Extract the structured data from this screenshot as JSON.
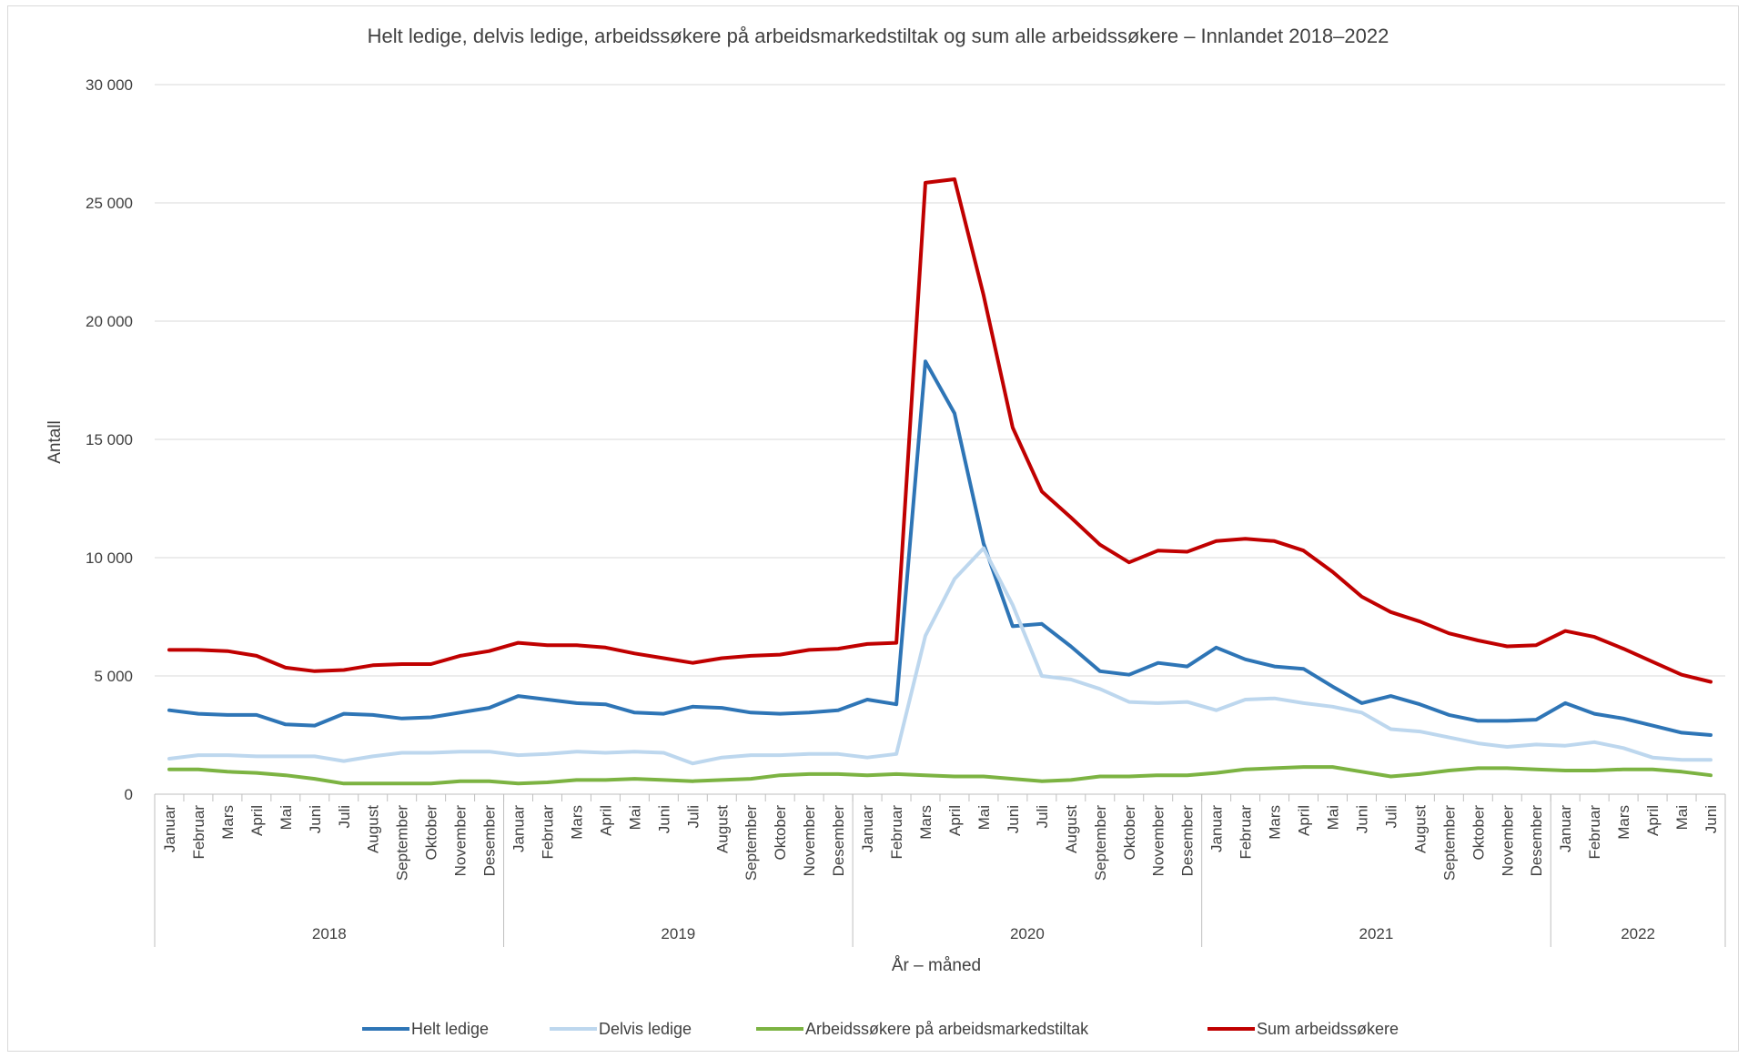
{
  "chart_data": {
    "type": "line",
    "title": "Helt ledige, delvis ledige, arbeidssøkere på arbeidsmarkedstiltak og sum alle arbeidssøkere – Innlandet 2018–2022",
    "xlabel": "År – måned",
    "ylabel": "Antall",
    "ylim": [
      0,
      30000
    ],
    "yticks": [
      0,
      5000,
      10000,
      15000,
      20000,
      25000,
      30000
    ],
    "ytick_labels": [
      "0",
      "5 000",
      "10 000",
      "15 000",
      "20 000",
      "25 000",
      "30 000"
    ],
    "grid": true,
    "legend_position": "bottom",
    "categories": [
      "Januar",
      "Februar",
      "Mars",
      "April",
      "Mai",
      "Juni",
      "Juli",
      "August",
      "September",
      "Oktober",
      "November",
      "Desember",
      "Januar",
      "Februar",
      "Mars",
      "April",
      "Mai",
      "Juni",
      "Juli",
      "August",
      "September",
      "Oktober",
      "November",
      "Desember",
      "Januar",
      "Februar",
      "Mars",
      "April",
      "Mai",
      "Juni",
      "Juli",
      "August",
      "September",
      "Oktober",
      "November",
      "Desember",
      "Januar",
      "Februar",
      "Mars",
      "April",
      "Mai",
      "Juni",
      "Juli",
      "August",
      "September",
      "Oktober",
      "November",
      "Desember",
      "Januar",
      "Februar",
      "Mars",
      "April",
      "Mai",
      "Juni"
    ],
    "groups": [
      {
        "label": "2018",
        "count": 12
      },
      {
        "label": "2019",
        "count": 12
      },
      {
        "label": "2020",
        "count": 12
      },
      {
        "label": "2021",
        "count": 12
      },
      {
        "label": "2022",
        "count": 6
      }
    ],
    "series": [
      {
        "name": "Helt ledige",
        "color": "#2e75b6",
        "values": [
          3550,
          3400,
          3350,
          3350,
          2950,
          2900,
          3400,
          3350,
          3200,
          3250,
          3450,
          3650,
          4150,
          4000,
          3850,
          3800,
          3450,
          3400,
          3700,
          3650,
          3450,
          3400,
          3450,
          3550,
          4000,
          3800,
          18300,
          16100,
          10600,
          7100,
          7200,
          6250,
          5200,
          5050,
          5550,
          5400,
          6200,
          5700,
          5400,
          5300,
          4550,
          3850,
          4150,
          3800,
          3350,
          3100,
          3100,
          3150,
          3850,
          3400,
          3200,
          2900,
          2600,
          2500
        ]
      },
      {
        "name": "Delvis ledige",
        "color": "#bdd7ee",
        "values": [
          1500,
          1650,
          1650,
          1600,
          1600,
          1600,
          1400,
          1600,
          1750,
          1750,
          1800,
          1800,
          1650,
          1700,
          1800,
          1750,
          1800,
          1750,
          1300,
          1550,
          1650,
          1650,
          1700,
          1700,
          1550,
          1700,
          6700,
          9100,
          10400,
          8000,
          5000,
          4850,
          4450,
          3900,
          3850,
          3900,
          3550,
          4000,
          4050,
          3850,
          3700,
          3450,
          2750,
          2650,
          2400,
          2150,
          2000,
          2100,
          2050,
          2200,
          1950,
          1550,
          1450,
          1450
        ]
      },
      {
        "name": "Arbeidssøkere på arbeidsmarkedstiltak",
        "color": "#7cb342",
        "values": [
          1050,
          1050,
          950,
          900,
          800,
          650,
          450,
          450,
          450,
          450,
          550,
          550,
          450,
          500,
          600,
          600,
          650,
          600,
          550,
          600,
          650,
          800,
          850,
          850,
          800,
          850,
          800,
          750,
          750,
          650,
          550,
          600,
          750,
          750,
          800,
          800,
          900,
          1050,
          1100,
          1150,
          1150,
          950,
          750,
          850,
          1000,
          1100,
          1100,
          1050,
          1000,
          1000,
          1050,
          1050,
          950,
          800
        ]
      },
      {
        "name": "Sum arbeidssøkere",
        "color": "#c00000",
        "values": [
          6100,
          6100,
          6050,
          5850,
          5350,
          5200,
          5250,
          5450,
          5500,
          5500,
          5850,
          6050,
          6400,
          6300,
          6300,
          6200,
          5950,
          5750,
          5550,
          5750,
          5850,
          5900,
          6100,
          6150,
          6350,
          6400,
          25850,
          26000,
          21100,
          15500,
          12800,
          11700,
          10550,
          9800,
          10300,
          10250,
          10700,
          10800,
          10700,
          10300,
          9400,
          8350,
          7700,
          7300,
          6800,
          6500,
          6250,
          6300,
          6900,
          6650,
          6150,
          5600,
          5050,
          4750
        ]
      }
    ]
  }
}
